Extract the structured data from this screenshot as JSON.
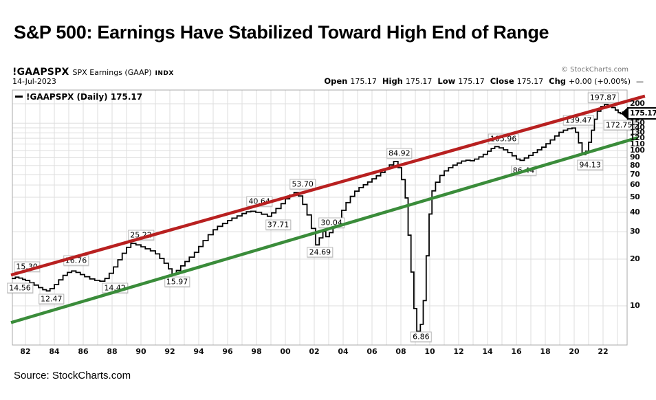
{
  "page": {
    "title": "S&P 500: Earnings Have Stabilized Toward High End of Range",
    "source": "Source: StockCharts.com"
  },
  "header": {
    "symbol": "!GAAPSPX",
    "name": "SPX Earnings (GAAP)",
    "exchange": "INDX",
    "date": "14-Jul-2023",
    "copyright": "© StockCharts.com",
    "quote": [
      {
        "label": "Open",
        "value": "175.17"
      },
      {
        "label": "High",
        "value": "175.17"
      },
      {
        "label": "Low",
        "value": "175.17"
      },
      {
        "label": "Close",
        "value": "175.17"
      },
      {
        "label": "Chg",
        "value": "+0.00 (+0.00%)"
      }
    ],
    "quote_dash": "—"
  },
  "legend": {
    "marker": "—",
    "label": "!GAAPSPX (Daily) 175.17"
  },
  "price_tag": "175.17",
  "chart_data": {
    "type": "line",
    "line_style": "step",
    "title": "!GAAPSPX SPX Earnings (GAAP) INDX",
    "scale": "log",
    "grid": true,
    "x_range": [
      1981.0,
      2023.7
    ],
    "y_range": [
      5.6,
      243
    ],
    "last_price": 175.17,
    "y_axis_ticks": [
      10,
      20,
      30,
      40,
      50,
      60,
      70,
      80,
      90,
      100,
      110,
      120,
      130,
      140,
      150,
      200
    ],
    "x_axis_ticks": [
      {
        "t": 1982,
        "label": "82"
      },
      {
        "t": 1984,
        "label": "84"
      },
      {
        "t": 1986,
        "label": "86"
      },
      {
        "t": 1988,
        "label": "88"
      },
      {
        "t": 1990,
        "label": "90"
      },
      {
        "t": 1992,
        "label": "92"
      },
      {
        "t": 1994,
        "label": "94"
      },
      {
        "t": 1996,
        "label": "96"
      },
      {
        "t": 1998,
        "label": "98"
      },
      {
        "t": 2000,
        "label": "00"
      },
      {
        "t": 2002,
        "label": "02"
      },
      {
        "t": 2004,
        "label": "04"
      },
      {
        "t": 2006,
        "label": "06"
      },
      {
        "t": 2008,
        "label": "08"
      },
      {
        "t": 2010,
        "label": "10"
      },
      {
        "t": 2012,
        "label": "12"
      },
      {
        "t": 2014,
        "label": "14"
      },
      {
        "t": 2016,
        "label": "16"
      },
      {
        "t": 2018,
        "label": "18"
      },
      {
        "t": 2020,
        "label": "20"
      },
      {
        "t": 2022,
        "label": "22"
      }
    ],
    "series": [
      [
        1981.05,
        15.0
      ],
      [
        1981.3,
        15.3
      ],
      [
        1981.55,
        15.1
      ],
      [
        1981.8,
        14.8
      ],
      [
        1982.0,
        14.56
      ],
      [
        1982.3,
        14.1
      ],
      [
        1982.6,
        13.6
      ],
      [
        1982.9,
        13.1
      ],
      [
        1983.2,
        12.7
      ],
      [
        1983.45,
        12.47
      ],
      [
        1983.7,
        12.9
      ],
      [
        1984.0,
        13.7
      ],
      [
        1984.3,
        14.7
      ],
      [
        1984.6,
        15.7
      ],
      [
        1984.9,
        16.4
      ],
      [
        1985.2,
        16.76
      ],
      [
        1985.5,
        16.4
      ],
      [
        1985.8,
        15.9
      ],
      [
        1986.1,
        15.4
      ],
      [
        1986.45,
        14.9
      ],
      [
        1986.8,
        14.6
      ],
      [
        1987.15,
        14.42
      ],
      [
        1987.5,
        15.0
      ],
      [
        1987.8,
        16.2
      ],
      [
        1988.1,
        17.8
      ],
      [
        1988.4,
        19.8
      ],
      [
        1988.7,
        21.8
      ],
      [
        1989.0,
        23.8
      ],
      [
        1989.3,
        25.22
      ],
      [
        1989.65,
        24.7
      ],
      [
        1990.0,
        24.0
      ],
      [
        1990.3,
        23.3
      ],
      [
        1990.65,
        22.6
      ],
      [
        1991.0,
        21.6
      ],
      [
        1991.3,
        20.2
      ],
      [
        1991.6,
        18.8
      ],
      [
        1991.9,
        17.3
      ],
      [
        1992.15,
        15.97
      ],
      [
        1992.45,
        16.9
      ],
      [
        1992.75,
        18.1
      ],
      [
        1993.05,
        19.3
      ],
      [
        1993.35,
        20.6
      ],
      [
        1993.7,
        22.1
      ],
      [
        1994.0,
        24.1
      ],
      [
        1994.3,
        26.3
      ],
      [
        1994.65,
        28.7
      ],
      [
        1995.0,
        30.9
      ],
      [
        1995.3,
        32.5
      ],
      [
        1995.65,
        33.9
      ],
      [
        1996.0,
        35.4
      ],
      [
        1996.3,
        36.7
      ],
      [
        1996.65,
        37.9
      ],
      [
        1997.0,
        39.3
      ],
      [
        1997.3,
        40.3
      ],
      [
        1997.6,
        40.64
      ],
      [
        1997.95,
        40.0
      ],
      [
        1998.35,
        38.9
      ],
      [
        1998.75,
        37.71
      ],
      [
        1999.05,
        39.7
      ],
      [
        1999.35,
        42.3
      ],
      [
        1999.7,
        45.5
      ],
      [
        2000.0,
        48.8
      ],
      [
        2000.3,
        51.7
      ],
      [
        2000.6,
        53.7
      ],
      [
        2000.9,
        51.0
      ],
      [
        2001.2,
        45.0
      ],
      [
        2001.5,
        38.5
      ],
      [
        2001.8,
        31.5
      ],
      [
        2002.1,
        24.69
      ],
      [
        2002.35,
        27.4
      ],
      [
        2002.6,
        30.04
      ],
      [
        2002.8,
        27.9
      ],
      [
        2003.05,
        29.6
      ],
      [
        2003.3,
        32.6
      ],
      [
        2003.6,
        36.6
      ],
      [
        2003.9,
        41.2
      ],
      [
        2004.2,
        46.2
      ],
      [
        2004.5,
        50.7
      ],
      [
        2004.8,
        54.7
      ],
      [
        2005.1,
        57.7
      ],
      [
        2005.4,
        60.2
      ],
      [
        2005.7,
        62.7
      ],
      [
        2006.0,
        65.7
      ],
      [
        2006.3,
        68.7
      ],
      [
        2006.6,
        72.2
      ],
      [
        2006.9,
        76.2
      ],
      [
        2007.2,
        80.7
      ],
      [
        2007.5,
        84.92
      ],
      [
        2007.8,
        77.5
      ],
      [
        2008.05,
        65.0
      ],
      [
        2008.3,
        49.5
      ],
      [
        2008.5,
        28.5
      ],
      [
        2008.7,
        16.5
      ],
      [
        2008.9,
        9.6
      ],
      [
        2009.1,
        6.86
      ],
      [
        2009.35,
        7.6
      ],
      [
        2009.55,
        10.8
      ],
      [
        2009.75,
        21.0
      ],
      [
        2009.95,
        39.0
      ],
      [
        2010.15,
        55.0
      ],
      [
        2010.4,
        62.5
      ],
      [
        2010.7,
        69.0
      ],
      [
        2011.0,
        74.0
      ],
      [
        2011.3,
        77.5
      ],
      [
        2011.6,
        80.5
      ],
      [
        2011.9,
        83.0
      ],
      [
        2012.2,
        85.5
      ],
      [
        2012.5,
        86.5
      ],
      [
        2012.8,
        86.0
      ],
      [
        2013.1,
        88.0
      ],
      [
        2013.4,
        91.0
      ],
      [
        2013.7,
        94.5
      ],
      [
        2014.0,
        99.0
      ],
      [
        2014.25,
        103.0
      ],
      [
        2014.5,
        105.96
      ],
      [
        2014.8,
        104.0
      ],
      [
        2015.1,
        101.0
      ],
      [
        2015.4,
        97.0
      ],
      [
        2015.7,
        92.5
      ],
      [
        2016.0,
        88.0
      ],
      [
        2016.25,
        86.44
      ],
      [
        2016.55,
        89.5
      ],
      [
        2016.85,
        93.0
      ],
      [
        2017.15,
        97.0
      ],
      [
        2017.45,
        101.0
      ],
      [
        2017.75,
        105.0
      ],
      [
        2018.05,
        110.5
      ],
      [
        2018.35,
        117.0
      ],
      [
        2018.65,
        124.0
      ],
      [
        2018.95,
        131.0
      ],
      [
        2019.25,
        135.0
      ],
      [
        2019.55,
        138.0
      ],
      [
        2019.85,
        139.47
      ],
      [
        2020.1,
        131.0
      ],
      [
        2020.3,
        112.0
      ],
      [
        2020.55,
        94.13
      ],
      [
        2020.8,
        99.0
      ],
      [
        2021.0,
        113.0
      ],
      [
        2021.2,
        135.0
      ],
      [
        2021.4,
        159.0
      ],
      [
        2021.6,
        179.0
      ],
      [
        2021.85,
        192.0
      ],
      [
        2022.1,
        197.87
      ],
      [
        2022.35,
        195.5
      ],
      [
        2022.6,
        189.0
      ],
      [
        2022.85,
        182.0
      ],
      [
        2023.05,
        175.5
      ],
      [
        2023.2,
        172.75
      ],
      [
        2023.35,
        176.5
      ],
      [
        2023.5,
        175.17
      ]
    ],
    "annotations": [
      {
        "label": "15.30",
        "t": 1982.1,
        "v": 17.8
      },
      {
        "label": "14.56",
        "t": 1981.62,
        "v": 13.06
      },
      {
        "label": "12.47",
        "t": 1983.8,
        "v": 11.05
      },
      {
        "label": "16.76",
        "t": 1985.5,
        "v": 19.6
      },
      {
        "label": "14.42",
        "t": 1988.2,
        "v": 13.06
      },
      {
        "label": "25.22",
        "t": 1990.0,
        "v": 28.5
      },
      {
        "label": "15.97",
        "t": 1992.5,
        "v": 14.3
      },
      {
        "label": "40.64",
        "t": 1998.2,
        "v": 47.0
      },
      {
        "label": "37.71",
        "t": 1999.5,
        "v": 33.3
      },
      {
        "label": "53.70",
        "t": 2001.2,
        "v": 60.7
      },
      {
        "label": "24.69",
        "t": 2002.4,
        "v": 22.1
      },
      {
        "label": "30.04",
        "t": 2003.2,
        "v": 34.3
      },
      {
        "label": "84.92",
        "t": 2007.9,
        "v": 96.0
      },
      {
        "label": "6.86",
        "t": 2009.4,
        "v": 6.3
      },
      {
        "label": "105.96",
        "t": 2015.1,
        "v": 119.0
      },
      {
        "label": "86.44",
        "t": 2016.5,
        "v": 74.4
      },
      {
        "label": "139.47",
        "t": 2020.3,
        "v": 156.5
      },
      {
        "label": "94.13",
        "t": 2021.1,
        "v": 80.8
      },
      {
        "label": "197.87",
        "t": 2022.0,
        "v": 219.0
      },
      {
        "label": "172.75",
        "t": 2023.1,
        "v": 145.8
      }
    ],
    "trendlines": [
      {
        "name": "upper-channel-line",
        "color": "#b82020",
        "t1": 1981.0,
        "v1": 15.8,
        "t2": 2024.9,
        "v2": 224.0
      },
      {
        "name": "lower-channel-line",
        "color": "#3a8c3a",
        "t1": 1981.0,
        "v1": 7.8,
        "t2": 2024.4,
        "v2": 121.0
      }
    ],
    "colors": {
      "series": "#000000",
      "grid": "#dedede",
      "frame": "#a8a8a8",
      "upper_channel": "#b82020",
      "lower_channel": "#3a8c3a",
      "axis_text": "#111111"
    }
  }
}
